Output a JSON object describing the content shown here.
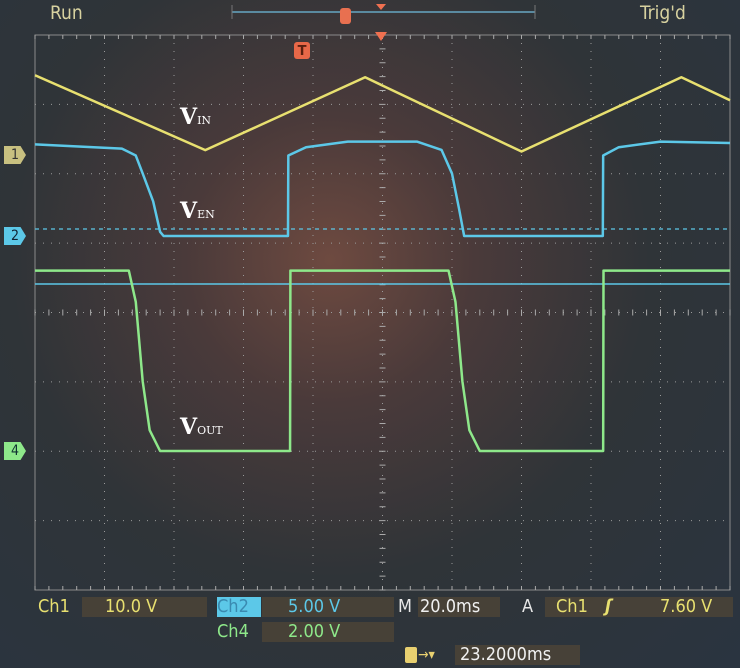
{
  "status": {
    "run": "Run",
    "trigger_state": "Trig'd"
  },
  "markers": {
    "ch1": "1",
    "ch2": "2",
    "ch4": "4",
    "trigger": "T"
  },
  "trace_labels": {
    "vin": "V",
    "vin_sub": "IN",
    "ven": "V",
    "ven_sub": "EN",
    "vout": "V",
    "vout_sub": "OUT"
  },
  "readout": {
    "ch1_label": "Ch1",
    "ch1_scale": "10.0 V",
    "ch2_label": "Ch2",
    "ch2_scale": "5.00 V",
    "ch4_label": "Ch4",
    "ch4_scale": "2.00 V",
    "timebase_label": "M",
    "timebase": "20.0ms",
    "trigger_label": "A",
    "trigger_source": "Ch1",
    "trigger_slope": "rising",
    "trigger_level": "7.60 V",
    "trigger_position": "23.2000ms"
  },
  "colors": {
    "ch1": "#e8e070",
    "ch2": "#5cc8e8",
    "ch4": "#8ee88a",
    "trigger": "#f07050"
  },
  "chart_data": {
    "type": "line",
    "xlabel": "",
    "ylabel": "",
    "xunit": "ms",
    "xlim": [
      0,
      200
    ],
    "x_per_div": 20,
    "grid": true,
    "divisions": {
      "x": 10,
      "y": 8
    },
    "series": [
      {
        "name": "VIN",
        "channel": "Ch1",
        "volts_per_div": 10,
        "x": [
          0,
          49,
          95,
          140,
          186,
          200
        ],
        "y": [
          11.5,
          0.7,
          11.2,
          0.5,
          11.2,
          7.9
        ]
      },
      {
        "name": "VEN",
        "channel": "Ch2",
        "volts_per_div": 5,
        "x": [
          0,
          25,
          29,
          31,
          34,
          36,
          37,
          72.8,
          72.9,
          78,
          90,
          110,
          117,
          120,
          122,
          123.5,
          163.4,
          163.5,
          168,
          180,
          200
        ],
        "y": [
          6.6,
          6.3,
          5.8,
          4.5,
          2.5,
          0.3,
          0,
          0,
          5.8,
          6.4,
          6.8,
          6.8,
          6.2,
          4.5,
          2,
          0,
          0,
          5.8,
          6.4,
          6.8,
          6.7
        ]
      },
      {
        "name": "VOUT",
        "channel": "Ch4",
        "volts_per_div": 2,
        "x": [
          0,
          27,
          29,
          31,
          33,
          36,
          73.4,
          73.5,
          119,
          121,
          123,
          125,
          128,
          163.5,
          163.6,
          200
        ],
        "y": [
          5.2,
          5.2,
          4.3,
          2,
          0.6,
          0,
          0,
          5.2,
          5.2,
          4.3,
          2,
          0.6,
          0,
          0,
          5.2,
          5.2
        ]
      }
    ]
  }
}
